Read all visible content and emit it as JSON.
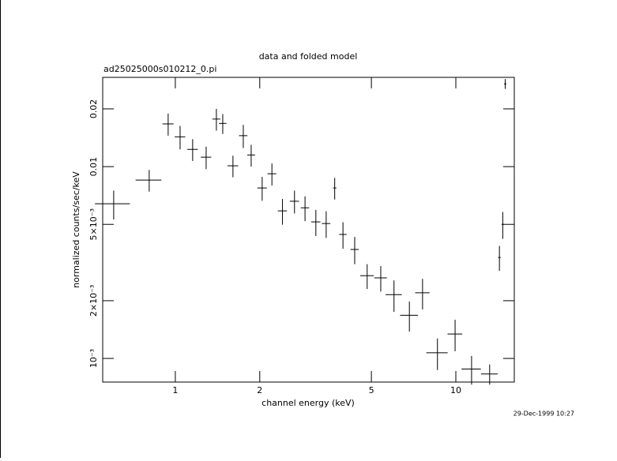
{
  "chart_data": {
    "type": "scatter",
    "title": "data and folded model",
    "subtitle": "ad25025000s010212_0.pi",
    "x_label": "channel energy (keV)",
    "y_label": "normalized counts/sec/keV",
    "timestamp": "29-Dec-1999 10:27",
    "x_scale": "log",
    "y_scale": "log",
    "color": "#000000",
    "xlim": [
      0.551,
      16.16
    ],
    "ylim": [
      0.000753,
      0.0292
    ],
    "xticks": [
      1,
      2,
      5,
      10
    ],
    "yticks": [
      {
        "value": 0.001,
        "label": "10⁻³"
      },
      {
        "value": 0.002,
        "label": "2×10⁻³"
      },
      {
        "value": 0.005,
        "label": "5×10⁻³"
      },
      0.01,
      0.02
    ],
    "x": [
      0.603,
      0.807,
      0.943,
      1.04,
      1.153,
      1.288,
      1.401,
      1.476,
      1.605,
      1.747,
      1.864,
      2.04,
      2.21,
      2.41,
      2.66,
      2.9,
      3.17,
      3.45,
      3.7,
      3.96,
      4.36,
      4.83,
      5.4,
      6.02,
      6.83,
      7.61,
      8.6,
      9.94,
      11.38,
      13.2,
      14.3,
      14.7,
      15.0
    ],
    "xerr": [
      0.086,
      0.085,
      0.043,
      0.045,
      0.05,
      0.055,
      0.045,
      0.045,
      0.07,
      0.06,
      0.06,
      0.08,
      0.08,
      0.09,
      0.1,
      0.1,
      0.12,
      0.12,
      0.05,
      0.12,
      0.15,
      0.27,
      0.28,
      0.4,
      0.5,
      0.45,
      0.75,
      0.6,
      0.9,
      0.9,
      0.15,
      0.15,
      0.15
    ],
    "values": [
      0.0064,
      0.00851,
      0.0167,
      0.0143,
      0.0123,
      0.0112,
      0.0177,
      0.0168,
      0.0101,
      0.0145,
      0.0115,
      0.00774,
      0.00918,
      0.00588,
      0.0066,
      0.0061,
      0.00515,
      0.00505,
      0.00774,
      0.00443,
      0.0037,
      0.0027,
      0.00263,
      0.00215,
      0.00168,
      0.0022,
      0.00107,
      0.00134,
      0.00088,
      0.00083,
      0.00336,
      0.005,
      0.027
    ],
    "yerr": [
      0.0011,
      0.0011,
      0.0022,
      0.002,
      0.0016,
      0.0015,
      0.0023,
      0.002,
      0.0013,
      0.002,
      0.0015,
      0.0011,
      0.0012,
      0.0009,
      0.0009,
      0.0009,
      0.0008,
      0.0008,
      0.001,
      0.0007,
      0.0006,
      0.0004,
      0.0004,
      0.0004,
      0.0003,
      0.0004,
      0.0002,
      0.00025,
      0.00015,
      0.0001,
      0.0005,
      0.0008,
      0.0016
    ]
  }
}
